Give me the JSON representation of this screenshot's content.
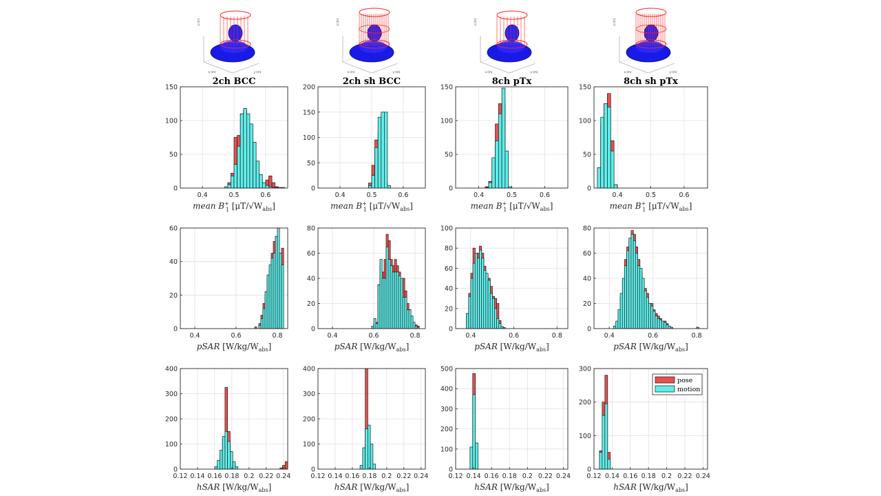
{
  "figure": {
    "legend": [
      {
        "label": "pose",
        "color": "#e8504f"
      },
      {
        "label": "motion",
        "color": "#5eeeea"
      }
    ],
    "colors": {
      "pose": "#e8504f",
      "motion": "#5eeeea",
      "grid": "#e0e0e0",
      "axis": "#262626"
    },
    "coil_models": [
      {
        "col": 0,
        "rings": 1,
        "xlabel": "x (m)",
        "ylabel": "y (m)",
        "zlabel": "z (m)"
      },
      {
        "col": 1,
        "rings": 2,
        "xlabel": "x (m)",
        "ylabel": "y (m)",
        "zlabel": "z (m)"
      },
      {
        "col": 2,
        "rings": 1,
        "xlabel": "x (m)",
        "ylabel": "y (m)",
        "zlabel": "z (m)"
      },
      {
        "col": 3,
        "rings": 2,
        "xlabel": "x (m)",
        "ylabel": "y (m)",
        "zlabel": "z (m)"
      }
    ],
    "columns": [
      "2ch BCC",
      "2ch sh BCC",
      "8ch pTx",
      "8ch sh pTx"
    ]
  },
  "chart_data": [
    {
      "type": "bar",
      "title": "2ch BCC",
      "row": 0,
      "col": 0,
      "xlabel": "mean B1+ [µT/√Wabs]",
      "xlabel_parts": {
        "main": "mean B",
        "sub": "1",
        "sup": "+",
        "rest": " [μT/√W",
        "wsub": "abs",
        "end": "]"
      },
      "xlim": [
        0.33,
        0.67
      ],
      "ylim": [
        0,
        150
      ],
      "xticks": [
        0.4,
        0.5,
        0.6
      ],
      "yticks": [
        0,
        50,
        100,
        150
      ],
      "bins": [
        0.47,
        0.48,
        0.49,
        0.5,
        0.51,
        0.52,
        0.53,
        0.54,
        0.55,
        0.56,
        0.57,
        0.58,
        0.59,
        0.6,
        0.61,
        0.62,
        0.63,
        0.64,
        0.65
      ],
      "bin_width": 0.01,
      "series": [
        {
          "name": "pose",
          "values": [
            0,
            8,
            22,
            75,
            78,
            110,
            115,
            95,
            65,
            35,
            15,
            4,
            6,
            12,
            18,
            8,
            2,
            0,
            0
          ]
        },
        {
          "name": "motion",
          "values": [
            2,
            5,
            18,
            35,
            62,
            110,
            118,
            110,
            95,
            68,
            40,
            20,
            8,
            4,
            2,
            1,
            1,
            1,
            1
          ]
        }
      ]
    },
    {
      "type": "bar",
      "title": "2ch sh BCC",
      "row": 0,
      "col": 1,
      "xlabel": "mean B1+ [µT/√Wabs]",
      "xlabel_parts": {
        "main": "mean B",
        "sub": "1",
        "sup": "+",
        "rest": " [μT/√W",
        "wsub": "abs",
        "end": "]"
      },
      "xlim": [
        0.33,
        0.67
      ],
      "ylim": [
        0,
        200
      ],
      "xticks": [
        0.4,
        0.5,
        0.6
      ],
      "yticks": [
        0,
        50,
        100,
        150,
        200
      ],
      "bins": [
        0.48,
        0.49,
        0.5,
        0.51,
        0.52,
        0.53,
        0.54,
        0.55
      ],
      "bin_width": 0.01,
      "series": [
        {
          "name": "pose",
          "values": [
            0,
            10,
            45,
            95,
            110,
            60,
            10,
            1
          ]
        },
        {
          "name": "motion",
          "values": [
            0,
            5,
            25,
            80,
            140,
            150,
            150,
            5
          ]
        }
      ]
    },
    {
      "type": "bar",
      "title": "8ch pTx",
      "row": 0,
      "col": 2,
      "xlabel": "mean B1+ [µT/√Wabs]",
      "xlabel_parts": {
        "main": "mean B",
        "sub": "1",
        "sup": "+",
        "rest": " [μT/√W",
        "wsub": "abs",
        "end": "]"
      },
      "xlim": [
        0.33,
        0.67
      ],
      "ylim": [
        0,
        150
      ],
      "xticks": [
        0.4,
        0.5,
        0.6
      ],
      "yticks": [
        0,
        50,
        100,
        150
      ],
      "bins": [
        0.42,
        0.43,
        0.44,
        0.45,
        0.46,
        0.47,
        0.48,
        0.49
      ],
      "bin_width": 0.01,
      "series": [
        {
          "name": "pose",
          "values": [
            2,
            10,
            40,
            95,
            125,
            125,
            15,
            1
          ]
        },
        {
          "name": "motion",
          "values": [
            1,
            8,
            45,
            70,
            110,
            148,
            55,
            2
          ]
        }
      ]
    },
    {
      "type": "bar",
      "title": "8ch sh pTx",
      "row": 0,
      "col": 3,
      "xlabel": "mean B1+ [µT/√Wabs]",
      "xlabel_parts": {
        "main": "mean B",
        "sub": "1",
        "sup": "+",
        "rest": " [μT/√W",
        "wsub": "abs",
        "end": "]"
      },
      "xlim": [
        0.33,
        0.67
      ],
      "ylim": [
        0,
        150
      ],
      "xticks": [
        0.4,
        0.5,
        0.6
      ],
      "yticks": [
        0,
        50,
        100,
        150
      ],
      "bins": [
        0.34,
        0.35,
        0.36,
        0.37,
        0.38,
        0.39,
        0.4
      ],
      "bin_width": 0.01,
      "series": [
        {
          "name": "pose",
          "values": [
            30,
            95,
            125,
            140,
            70,
            5,
            0
          ]
        },
        {
          "name": "motion",
          "values": [
            30,
            105,
            125,
            120,
            55,
            5,
            0
          ]
        }
      ]
    },
    {
      "type": "bar",
      "title": "",
      "row": 1,
      "col": 0,
      "xlabel": "pSAR [W/kg/Wabs]",
      "xlabel_parts": {
        "main": "pSAR",
        "rest": " [W/kg/W",
        "wsub": "abs",
        "end": "]"
      },
      "xlim": [
        0.33,
        0.85
      ],
      "ylim": [
        0,
        60
      ],
      "xticks": [
        0.4,
        0.6,
        0.8
      ],
      "yticks": [
        0,
        20,
        40,
        60
      ],
      "bins": [
        0.69,
        0.71,
        0.72,
        0.73,
        0.74,
        0.75,
        0.76,
        0.77,
        0.78,
        0.79,
        0.8,
        0.81,
        0.82
      ],
      "bin_width": 0.0105,
      "series": [
        {
          "name": "pose",
          "values": [
            1,
            3,
            8,
            15,
            20,
            30,
            35,
            45,
            52,
            55,
            40,
            45,
            48
          ]
        },
        {
          "name": "motion",
          "values": [
            0,
            2,
            6,
            12,
            22,
            32,
            38,
            42,
            45,
            55,
            60,
            45,
            38
          ]
        }
      ]
    },
    {
      "type": "bar",
      "title": "",
      "row": 1,
      "col": 1,
      "xlabel": "pSAR [W/kg/Wabs]",
      "xlabel_parts": {
        "main": "pSAR",
        "rest": " [W/kg/W",
        "wsub": "abs",
        "end": "]"
      },
      "xlim": [
        0.33,
        0.85
      ],
      "ylim": [
        0,
        80
      ],
      "xticks": [
        0.4,
        0.6,
        0.8
      ],
      "yticks": [
        0,
        20,
        40,
        60,
        80
      ],
      "bins": [
        0.59,
        0.6,
        0.61,
        0.62,
        0.63,
        0.64,
        0.65,
        0.66,
        0.67,
        0.68,
        0.69,
        0.7,
        0.71,
        0.72,
        0.73,
        0.74,
        0.75,
        0.76,
        0.77,
        0.78,
        0.79,
        0.8,
        0.81
      ],
      "bin_width": 0.0105,
      "series": [
        {
          "name": "pose",
          "values": [
            2,
            4,
            5,
            35,
            50,
            45,
            55,
            75,
            70,
            55,
            50,
            55,
            50,
            45,
            35,
            40,
            30,
            20,
            15,
            10,
            5,
            3,
            2
          ]
        },
        {
          "name": "motion",
          "values": [
            2,
            8,
            4,
            35,
            55,
            40,
            40,
            65,
            55,
            50,
            45,
            45,
            45,
            42,
            40,
            25,
            25,
            15,
            15,
            10,
            5,
            2,
            1
          ]
        }
      ]
    },
    {
      "type": "bar",
      "title": "",
      "row": 1,
      "col": 2,
      "xlabel": "pSAR [W/kg/Wabs]",
      "xlabel_parts": {
        "main": "pSAR",
        "rest": " [W/kg/W",
        "wsub": "abs",
        "end": "]"
      },
      "xlim": [
        0.33,
        0.85
      ],
      "ylim": [
        0,
        100
      ],
      "xticks": [
        0.4,
        0.6,
        0.8
      ],
      "yticks": [
        0,
        20,
        40,
        60,
        80,
        100
      ],
      "bins": [
        0.38,
        0.39,
        0.4,
        0.41,
        0.42,
        0.43,
        0.44,
        0.45,
        0.46,
        0.47,
        0.48,
        0.49,
        0.5,
        0.51,
        0.52,
        0.53,
        0.54,
        0.55
      ],
      "bin_width": 0.0105,
      "series": [
        {
          "name": "pose",
          "values": [
            15,
            35,
            55,
            80,
            65,
            75,
            82,
            75,
            62,
            45,
            50,
            42,
            32,
            30,
            25,
            8,
            2,
            1
          ]
        },
        {
          "name": "motion",
          "values": [
            15,
            32,
            50,
            65,
            75,
            70,
            78,
            70,
            58,
            55,
            48,
            35,
            30,
            20,
            10,
            5,
            2,
            1
          ]
        }
      ]
    },
    {
      "type": "bar",
      "title": "",
      "row": 1,
      "col": 3,
      "xlabel": "pSAR [W/kg/Wabs]",
      "xlabel_parts": {
        "main": "pSAR",
        "rest": " [W/kg/W",
        "wsub": "abs",
        "end": "]"
      },
      "xlim": [
        0.33,
        0.85
      ],
      "ylim": [
        0,
        80
      ],
      "xticks": [
        0.4,
        0.6,
        0.8
      ],
      "yticks": [
        0,
        20,
        40,
        60,
        80
      ],
      "bins": [
        0.42,
        0.43,
        0.44,
        0.45,
        0.46,
        0.47,
        0.48,
        0.49,
        0.5,
        0.51,
        0.52,
        0.53,
        0.54,
        0.55,
        0.56,
        0.57,
        0.58,
        0.59,
        0.6,
        0.61,
        0.62,
        0.63,
        0.64,
        0.65,
        0.66,
        0.67,
        0.68,
        0.8
      ],
      "bin_width": 0.0105,
      "series": [
        {
          "name": "pose",
          "values": [
            2,
            5,
            12,
            25,
            38,
            55,
            65,
            70,
            78,
            75,
            65,
            55,
            45,
            38,
            32,
            28,
            18,
            20,
            15,
            12,
            10,
            8,
            5,
            6,
            4,
            2,
            1,
            1
          ]
        },
        {
          "name": "motion",
          "values": [
            2,
            6,
            15,
            28,
            40,
            50,
            62,
            72,
            75,
            70,
            60,
            50,
            48,
            40,
            30,
            25,
            20,
            18,
            14,
            10,
            8,
            7,
            6,
            5,
            3,
            2,
            1,
            1
          ]
        }
      ]
    },
    {
      "type": "bar",
      "title": "",
      "row": 2,
      "col": 0,
      "xlabel": "hSAR [W/kg/Wabs]",
      "xlabel_parts": {
        "main": "hSAR",
        "rest": " [W/kg/W",
        "wsub": "abs",
        "end": "]"
      },
      "xlim": [
        0.12,
        0.245
      ],
      "ylim": [
        0,
        400
      ],
      "xticks": [
        0.12,
        0.14,
        0.16,
        0.18,
        0.2,
        0.22,
        0.24
      ],
      "yticks": [
        0,
        100,
        200,
        300,
        400
      ],
      "bins": [
        0.16,
        0.163,
        0.166,
        0.169,
        0.172,
        0.175,
        0.178,
        0.181,
        0.184,
        0.236,
        0.239,
        0.242
      ],
      "bin_width": 0.003,
      "series": [
        {
          "name": "pose",
          "values": [
            5,
            20,
            60,
            120,
            325,
            150,
            60,
            20,
            5,
            5,
            15,
            30
          ]
        },
        {
          "name": "motion",
          "values": [
            10,
            35,
            75,
            130,
            150,
            110,
            70,
            30,
            10,
            0,
            0,
            0
          ]
        }
      ]
    },
    {
      "type": "bar",
      "title": "",
      "row": 2,
      "col": 1,
      "xlabel": "hSAR [W/kg/Wabs]",
      "xlabel_parts": {
        "main": "hSAR",
        "rest": " [W/kg/W",
        "wsub": "abs",
        "end": "]"
      },
      "xlim": [
        0.12,
        0.245
      ],
      "ylim": [
        0,
        400
      ],
      "xticks": [
        0.12,
        0.14,
        0.16,
        0.18,
        0.2,
        0.22,
        0.24
      ],
      "yticks": [
        0,
        100,
        200,
        300,
        400
      ],
      "bins": [
        0.169,
        0.172,
        0.175,
        0.178,
        0.181,
        0.184
      ],
      "bin_width": 0.003,
      "series": [
        {
          "name": "pose",
          "values": [
            10,
            60,
            400,
            120,
            20,
            5
          ]
        },
        {
          "name": "motion",
          "values": [
            15,
            85,
            160,
            175,
            100,
            20
          ]
        }
      ]
    },
    {
      "type": "bar",
      "title": "",
      "row": 2,
      "col": 2,
      "xlabel": "hSAR [W/kg/Wabs]",
      "xlabel_parts": {
        "main": "hSAR",
        "rest": " [W/kg/W",
        "wsub": "abs",
        "end": "]"
      },
      "xlim": [
        0.12,
        0.245
      ],
      "ylim": [
        0,
        500
      ],
      "xticks": [
        0.12,
        0.14,
        0.16,
        0.18,
        0.2,
        0.22,
        0.24
      ],
      "yticks": [
        0,
        100,
        200,
        300,
        400,
        500
      ],
      "bins": [
        0.136,
        0.139,
        0.142
      ],
      "bin_width": 0.003,
      "series": [
        {
          "name": "pose",
          "values": [
            100,
            475,
            10
          ]
        },
        {
          "name": "motion",
          "values": [
            110,
            370,
            130
          ]
        }
      ]
    },
    {
      "type": "bar",
      "title": "",
      "row": 2,
      "col": 3,
      "xlabel": "hSAR [W/kg/Wabs]",
      "xlabel_parts": {
        "main": "hSAR",
        "rest": " [W/kg/W",
        "wsub": "abs",
        "end": "]"
      },
      "xlim": [
        0.12,
        0.245
      ],
      "ylim": [
        0,
        300
      ],
      "xticks": [
        0.12,
        0.14,
        0.16,
        0.18,
        0.2,
        0.22,
        0.24
      ],
      "yticks": [
        0,
        100,
        200,
        300
      ],
      "bins": [
        0.126,
        0.129,
        0.132,
        0.135
      ],
      "bin_width": 0.003,
      "series": [
        {
          "name": "pose",
          "values": [
            55,
            200,
            280,
            50
          ]
        },
        {
          "name": "motion",
          "values": [
            50,
            160,
            195,
            30
          ]
        }
      ]
    }
  ]
}
